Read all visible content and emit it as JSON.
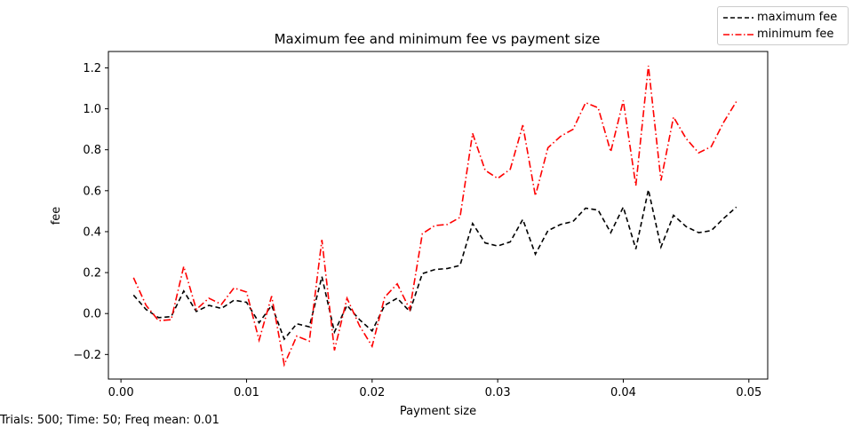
{
  "footer": {
    "text": "Trials: 500; Time: 50; Freq mean: 0.01"
  },
  "chart_data": {
    "type": "line",
    "title": "Maximum fee and minimum fee vs payment size",
    "xlabel": "Payment size",
    "ylabel": "fee",
    "xlim": [
      -0.001,
      0.0515
    ],
    "ylim": [
      -0.32,
      1.28
    ],
    "xticks": [
      0.0,
      0.01,
      0.02,
      0.03,
      0.04,
      0.05
    ],
    "xtick_labels": [
      "0.00",
      "0.01",
      "0.02",
      "0.03",
      "0.04",
      "0.05"
    ],
    "yticks": [
      -0.2,
      0.0,
      0.2,
      0.4,
      0.6,
      0.8,
      1.0,
      1.2
    ],
    "ytick_labels": [
      "−0.2",
      "0.0",
      "0.2",
      "0.4",
      "0.6",
      "0.8",
      "1.0",
      "1.2"
    ],
    "grid": false,
    "legend_position": "top-right",
    "x": [
      0.001,
      0.002,
      0.003,
      0.004,
      0.005,
      0.006,
      0.007,
      0.008,
      0.009,
      0.01,
      0.011,
      0.012,
      0.013,
      0.014,
      0.015,
      0.016,
      0.017,
      0.018,
      0.019,
      0.02,
      0.021,
      0.022,
      0.023,
      0.024,
      0.025,
      0.026,
      0.027,
      0.028,
      0.029,
      0.03,
      0.031,
      0.032,
      0.033,
      0.034,
      0.035,
      0.036,
      0.037,
      0.038,
      0.039,
      0.04,
      0.041,
      0.042,
      0.043,
      0.044,
      0.045,
      0.046,
      0.047,
      0.048,
      0.049
    ],
    "series": [
      {
        "name": "maximum fee",
        "color": "#000000",
        "style": "dashed",
        "values": [
          0.09,
          0.02,
          -0.02,
          -0.015,
          0.11,
          0.01,
          0.04,
          0.025,
          0.065,
          0.055,
          -0.045,
          0.04,
          -0.125,
          -0.05,
          -0.065,
          0.18,
          -0.09,
          0.04,
          -0.03,
          -0.085,
          0.04,
          0.075,
          0.01,
          0.195,
          0.215,
          0.22,
          0.235,
          0.44,
          0.345,
          0.33,
          0.35,
          0.46,
          0.29,
          0.405,
          0.435,
          0.45,
          0.515,
          0.505,
          0.395,
          0.52,
          0.315,
          0.605,
          0.325,
          0.48,
          0.425,
          0.395,
          0.405,
          0.465,
          0.52
        ]
      },
      {
        "name": "minimum fee",
        "color": "#ff0000",
        "style": "dashdot",
        "values": [
          0.175,
          0.04,
          -0.035,
          -0.03,
          0.23,
          0.02,
          0.075,
          0.045,
          0.125,
          0.105,
          -0.13,
          0.085,
          -0.25,
          -0.11,
          -0.135,
          0.36,
          -0.18,
          0.075,
          -0.06,
          -0.16,
          0.08,
          0.145,
          0.02,
          0.39,
          0.43,
          0.435,
          0.47,
          0.88,
          0.7,
          0.66,
          0.705,
          0.92,
          0.575,
          0.81,
          0.865,
          0.9,
          1.03,
          1.005,
          0.79,
          1.04,
          0.625,
          1.21,
          0.65,
          0.96,
          0.855,
          0.785,
          0.815,
          0.935,
          1.035
        ]
      }
    ]
  }
}
